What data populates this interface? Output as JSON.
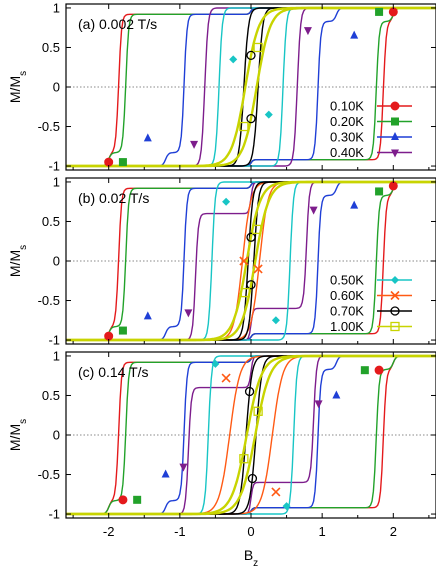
{
  "figure": {
    "shared_xlabel": "B",
    "shared_xlabel_sub": "z",
    "shared_ylabel_main": "M/M",
    "shared_ylabel_sub": "s"
  },
  "chart_data": [
    {
      "type": "line",
      "panel_label": "(a)",
      "title": "0.002 T/s",
      "xlabel": "B_z",
      "ylabel": "M/M_s",
      "xlim": [
        -2.6,
        2.6
      ],
      "ylim": [
        -1.05,
        1.05
      ],
      "xticks": [
        -2,
        -1,
        0,
        1,
        2
      ],
      "xtick_labels": [
        "-2",
        "-1",
        "0",
        "1",
        "2"
      ],
      "yticks": [
        -1,
        -0.5,
        0,
        0.5,
        1
      ],
      "ytick_labels": [
        "-1",
        "-0.5",
        "0",
        "0.5",
        "1"
      ],
      "zero_line": "dotted",
      "legend_position": "lower-right",
      "series": [
        {
          "name": "0.10K",
          "color": "#e41a1c",
          "marker": "circle-filled",
          "steps": [
            [
              0.04,
              2.0
            ],
            [
              1.86,
              -0.04
            ]
          ],
          "markers": [
            [
              -2.0,
              -0.95
            ],
            [
              2.0,
              0.95
            ]
          ]
        },
        {
          "name": "0.20K",
          "color": "#22a22a",
          "marker": "square-filled",
          "steps": [
            [
              0.04,
              2.0
            ],
            [
              1.76,
              -0.04
            ]
          ],
          "markers": [
            [
              -1.8,
              -0.95
            ],
            [
              1.8,
              0.95
            ]
          ]
        },
        {
          "name": "0.30K",
          "color": "#1f3fd6",
          "marker": "triangle-up",
          "steps": [
            [
              0.04,
              1.2
            ],
            [
              0.94,
              -0.04
            ]
          ],
          "markers": [
            [
              -1.45,
              -0.65
            ],
            [
              1.45,
              0.65
            ]
          ]
        },
        {
          "name": "0.40K",
          "color": "#7d1d8c",
          "marker": "triangle-down",
          "steps": [
            [
              0.04,
              0.65
            ],
            [
              0.6,
              -0.04
            ]
          ],
          "markers": [
            [
              -0.8,
              -0.72
            ],
            [
              0.8,
              0.72
            ]
          ]
        },
        {
          "name": "0.50K",
          "color": "#18c5c5",
          "marker": "diamond",
          "steps": [
            [
              0.04,
              0.45
            ],
            [
              0.35,
              -0.04
            ]
          ],
          "markers": [
            [
              -0.25,
              0.35
            ],
            [
              0.25,
              -0.35
            ]
          ]
        },
        {
          "name": "0.70K",
          "color": "#000000",
          "marker": "circle-open",
          "steps": [
            [
              0.06,
              0.1
            ],
            [
              0.02,
              -0.06
            ]
          ],
          "markers": [
            [
              0.0,
              0.4
            ],
            [
              0.0,
              -0.4
            ]
          ]
        },
        {
          "name": "1.00K",
          "color": "#c8d400",
          "marker": "square-open",
          "steps": [
            [
              0.2,
              0.08
            ],
            [
              0.0,
              -0.08
            ]
          ],
          "markers": [
            [
              0.1,
              0.5
            ],
            [
              -0.1,
              -0.5
            ]
          ]
        }
      ]
    },
    {
      "type": "line",
      "panel_label": "(b)",
      "title": "0.02 T/s",
      "xlabel": "B_z",
      "ylabel": "M/M_s",
      "xlim": [
        -2.6,
        2.6
      ],
      "ylim": [
        -1.05,
        1.05
      ],
      "xticks": [
        -2,
        -1,
        0,
        1,
        2
      ],
      "xtick_labels": [
        "-2",
        "-1",
        "0",
        "1",
        "2"
      ],
      "yticks": [
        -1,
        -0.5,
        0,
        0.5,
        1
      ],
      "ytick_labels": [
        "-1",
        "-0.5",
        "0",
        "0.5",
        "1"
      ],
      "zero_line": "dotted",
      "legend_position": "lower-right",
      "series": [
        {
          "name": "0.10K",
          "color": "#e41a1c",
          "marker": "circle-filled",
          "steps": [
            [
              0.04,
              2.0
            ],
            [
              1.86,
              -0.04
            ]
          ],
          "markers": [
            [
              -2.0,
              -0.95
            ],
            [
              2.0,
              0.95
            ]
          ]
        },
        {
          "name": "0.20K",
          "color": "#22a22a",
          "marker": "square-filled",
          "steps": [
            [
              0.04,
              2.0
            ],
            [
              1.76,
              -0.04
            ]
          ],
          "markers": [
            [
              -1.8,
              -0.88
            ],
            [
              1.8,
              0.88
            ]
          ]
        },
        {
          "name": "0.30K",
          "color": "#1f3fd6",
          "marker": "triangle-up",
          "steps": [
            [
              0.04,
              1.2
            ],
            [
              0.94,
              -0.04
            ]
          ],
          "markers": [
            [
              -1.45,
              -0.7
            ],
            [
              1.45,
              0.7
            ]
          ]
        },
        {
          "name": "0.40K",
          "color": "#7d1d8c",
          "marker": "triangle-down",
          "steps": [
            [
              0.04,
              0.8
            ],
            [
              0.85,
              -0.04
            ]
          ],
          "markers": [
            [
              -0.88,
              -0.65
            ],
            [
              0.88,
              0.65
            ]
          ]
        },
        {
          "name": "0.50K",
          "color": "#18c5c5",
          "marker": "diamond",
          "steps": [
            [
              0.04,
              0.55
            ],
            [
              0.55,
              -0.04
            ]
          ],
          "markers": [
            [
              -0.35,
              0.75
            ],
            [
              0.35,
              -0.75
            ]
          ]
        },
        {
          "name": "0.60K",
          "color": "#ff5a14",
          "marker": "cross",
          "steps": [
            [
              0.12,
              0.12
            ]
          ],
          "markers": [
            [
              -0.1,
              0.0
            ],
            [
              0.1,
              -0.1
            ]
          ]
        },
        {
          "name": "0.70K",
          "color": "#000000",
          "marker": "circle-open",
          "steps": [
            [
              0.06,
              0.04
            ],
            [
              0.0,
              -0.04
            ]
          ],
          "markers": [
            [
              0.0,
              0.3
            ],
            [
              0.0,
              -0.3
            ]
          ]
        },
        {
          "name": "1.00K",
          "color": "#c8d400",
          "marker": "square-open",
          "steps": [
            [
              0.2,
              0.06
            ],
            [
              0.0,
              -0.06
            ]
          ],
          "markers": [
            [
              0.08,
              0.4
            ],
            [
              -0.08,
              -0.4
            ]
          ]
        }
      ]
    },
    {
      "type": "line",
      "panel_label": "(c)",
      "title": "0.14 T/s",
      "xlabel": "B_z",
      "ylabel": "M/M_s",
      "xlim": [
        -2.6,
        2.6
      ],
      "ylim": [
        -1.05,
        1.05
      ],
      "xticks": [
        -2,
        -1,
        0,
        1,
        2
      ],
      "xtick_labels": [
        "-2",
        "-1",
        "0",
        "1",
        "2"
      ],
      "yticks": [
        -1,
        -0.5,
        0,
        0.5,
        1
      ],
      "ytick_labels": [
        "-1",
        "-0.5",
        "0",
        "0.5",
        "1"
      ],
      "zero_line": "dotted",
      "legend_position": "none",
      "series": [
        {
          "name": "0.10K",
          "color": "#e41a1c",
          "marker": "circle-filled",
          "steps": [
            [
              0.04,
              2.0
            ],
            [
              1.86,
              -0.04
            ]
          ],
          "markers": [
            [
              -1.8,
              -0.82
            ],
            [
              1.8,
              0.82
            ]
          ]
        },
        {
          "name": "0.20K",
          "color": "#22a22a",
          "marker": "square-filled",
          "steps": [
            [
              0.04,
              2.0
            ],
            [
              1.76,
              -0.04
            ]
          ],
          "markers": [
            [
              -1.6,
              -0.82
            ],
            [
              1.6,
              0.82
            ]
          ]
        },
        {
          "name": "0.30K",
          "color": "#1f3fd6",
          "marker": "triangle-up",
          "steps": [
            [
              0.04,
              1.2
            ],
            [
              0.94,
              -0.04
            ]
          ],
          "markers": [
            [
              -1.2,
              -0.5
            ],
            [
              1.2,
              0.5
            ]
          ]
        },
        {
          "name": "0.40K",
          "color": "#7d1d8c",
          "marker": "triangle-down",
          "steps": [
            [
              0.04,
              0.9
            ],
            [
              0.92,
              -0.04
            ]
          ],
          "markers": [
            [
              -0.95,
              -0.4
            ],
            [
              0.95,
              0.4
            ]
          ]
        },
        {
          "name": "0.50K",
          "color": "#18c5c5",
          "marker": "diamond",
          "steps": [
            [
              0.04,
              0.6
            ],
            [
              0.6,
              -0.04
            ]
          ],
          "markers": [
            [
              -0.5,
              0.9
            ],
            [
              0.5,
              -0.9
            ]
          ]
        },
        {
          "name": "0.60K",
          "color": "#ff5a14",
          "marker": "cross",
          "steps": [
            [
              0.15,
              0.3
            ]
          ],
          "markers": [
            [
              -0.35,
              0.72
            ],
            [
              0.35,
              -0.72
            ]
          ]
        },
        {
          "name": "0.70K",
          "color": "#000000",
          "marker": "circle-open",
          "steps": [
            [
              0.08,
              0.07
            ],
            [
              0.0,
              -0.07
            ]
          ],
          "markers": [
            [
              -0.02,
              0.55
            ],
            [
              0.02,
              -0.55
            ]
          ]
        },
        {
          "name": "1.00K",
          "color": "#c8d400",
          "marker": "square-open",
          "steps": [
            [
              0.22,
              0.06
            ],
            [
              0.0,
              -0.06
            ]
          ],
          "markers": [
            [
              0.1,
              0.3
            ],
            [
              -0.1,
              -0.3
            ]
          ]
        }
      ]
    }
  ]
}
